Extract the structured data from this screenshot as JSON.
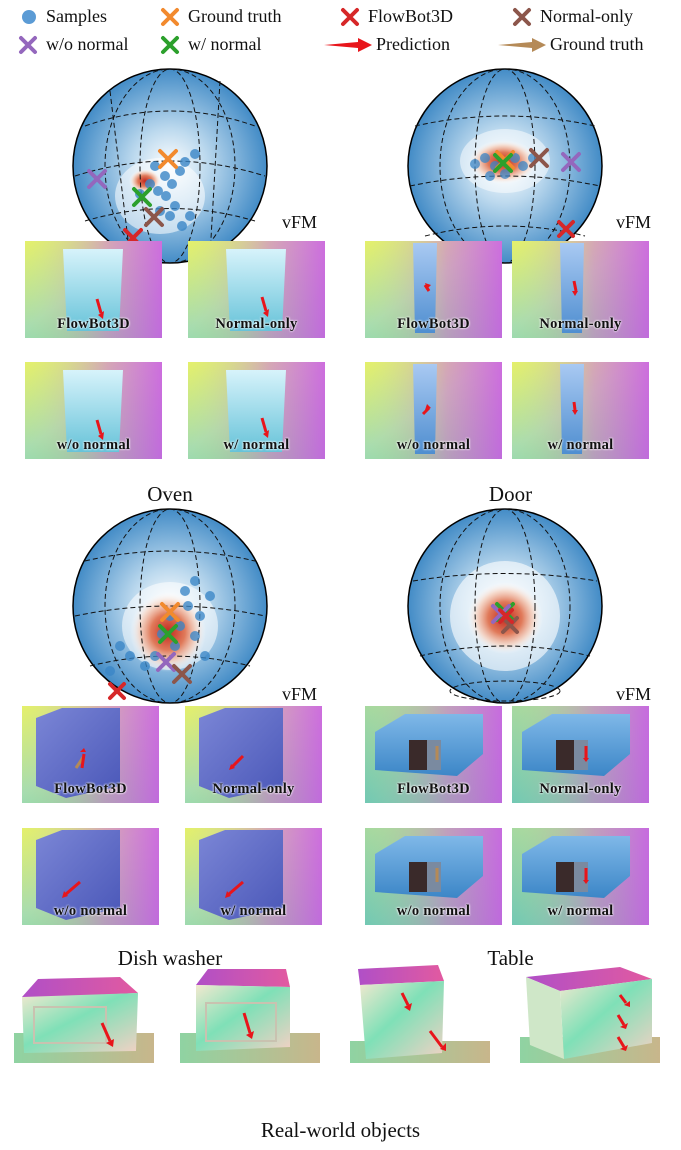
{
  "legend": {
    "samples": "Samples",
    "ground_truth_x": "Ground truth",
    "flowbot_x": "FlowBot3D",
    "normal_only_x": "Normal-only",
    "wo_normal_x": "w/o normal",
    "w_normal_x": "w/ normal",
    "prediction_arrow": "Prediction",
    "ground_truth_arrow": "Ground truth"
  },
  "colors": {
    "samples": "#5b9bd5",
    "ground_truth": "#f28a2e",
    "flowbot": "#d62728",
    "normal_only": "#8c564b",
    "wo_normal": "#9467bd",
    "w_normal": "#2ca02c",
    "prediction_arrow": "#e8151b",
    "ground_truth_arrow": "#b58a57"
  },
  "sphere_label": "vFM",
  "thumb_labels": {
    "flowbot": "FlowBot3D",
    "normal_only": "Normal-only",
    "wo_normal": "w/o normal",
    "w_normal": "w/ normal"
  },
  "panels": {
    "oven": "Oven",
    "door": "Door",
    "dishwasher": "Dish washer",
    "table": "Table"
  },
  "real_caption": "Real-world objects"
}
